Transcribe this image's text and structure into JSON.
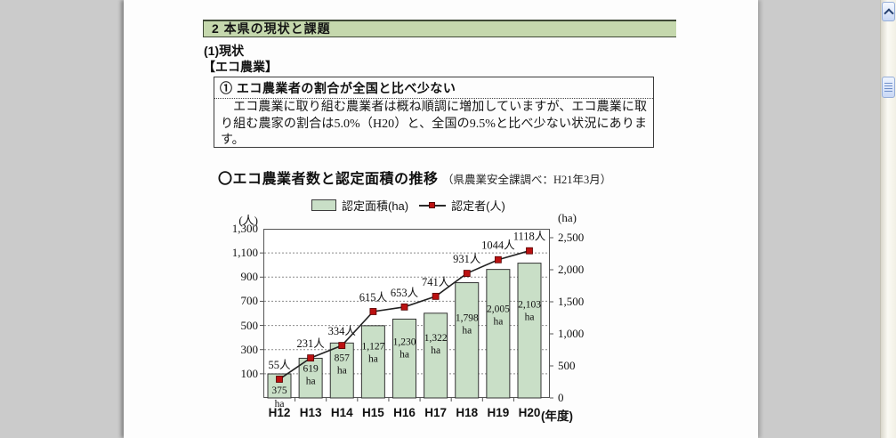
{
  "page": {
    "section_header": "2 本県の現状と課題",
    "subsection": "(1)現状",
    "category_label": "【エコ農業】",
    "callout": {
      "heading": "① エコ農業者の割合が全国と比べ少ない",
      "body": "　エコ農業に取り組む農業者は概ね順調に増加していますが、エコ農業に取り組む農家の割合は5.0%（H20）と、全国の9.5%と比べ少ない状況にあります。"
    },
    "chart_heading": {
      "title": "〇エコ農業者数と認定面積の推移",
      "source": "（県農業安全課調べ：H21年3月）"
    }
  },
  "chart_data": {
    "type": "bar",
    "subtype": "bar-line-combo",
    "categories": [
      "H12",
      "H13",
      "H14",
      "H15",
      "H16",
      "H17",
      "H18",
      "H19",
      "H20"
    ],
    "series": [
      {
        "name": "認定面積(ha)",
        "kind": "bar",
        "axis": "right",
        "unit": "ha",
        "values": [
          375,
          619,
          857,
          1127,
          1230,
          1322,
          1798,
          2005,
          2103
        ],
        "labels": [
          "375",
          "619",
          "857",
          "1,127",
          "1,230",
          "1,322",
          "1,798",
          "2,005",
          "2,103"
        ],
        "color": "#c9dfc7"
      },
      {
        "name": "認定者(人)",
        "kind": "line",
        "axis": "left",
        "unit": "人",
        "values": [
          55,
          231,
          334,
          615,
          653,
          741,
          931,
          1044,
          1118
        ],
        "labels": [
          "55人",
          "231人",
          "334人",
          "615人",
          "653人",
          "741人",
          "931人",
          "1044人",
          "1118人"
        ],
        "color": "#bb1111"
      }
    ],
    "left_axis": {
      "label": "(人)",
      "min": -100,
      "max": 1300,
      "ticks": [
        1300,
        1100,
        900,
        700,
        500,
        300,
        100
      ],
      "tick_labels": [
        "1,300",
        "1,100",
        "900",
        "700",
        "500",
        "300",
        "100"
      ]
    },
    "right_axis": {
      "label": "(ha)",
      "min": 0,
      "max": 2500,
      "ticks": [
        2500,
        2000,
        1500,
        1000,
        500,
        0
      ],
      "tick_labels": [
        "2,500",
        "2,000",
        "1,500",
        "1,000",
        "500",
        "0"
      ]
    },
    "x_axis_suffix": "(年度)",
    "grid": "dotted-horizontal",
    "legend_position": "top-center",
    "colors": {
      "bar_fill": "#c9dfc7",
      "bar_stroke": "#333333",
      "line": "#222222",
      "marker": "#bb1111",
      "header_green": "#c5d8ad"
    }
  },
  "viewer": {
    "scrollbar": {
      "up_icon": "chevron-up",
      "thumb_icon": "grip-lines"
    }
  }
}
